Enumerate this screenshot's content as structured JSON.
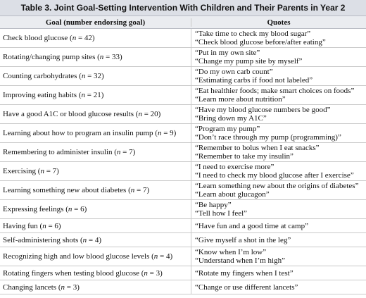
{
  "title": "Table 3. Joint Goal-Setting Intervention With Children and Their Parents in Year 2",
  "headers": {
    "goal": "Goal (number endorsing goal)",
    "quotes": "Quotes"
  },
  "rows": [
    {
      "goal": "Check blood glucose",
      "n": "42",
      "quotes": [
        "“Take time to check my blood sugar”",
        "“Check blood glucose before/after eating”"
      ]
    },
    {
      "goal": "Rotating/changing pump sites",
      "n": "33",
      "quotes": [
        "“Put in my own site”",
        "“Change my pump site by myself”"
      ]
    },
    {
      "goal": "Counting carbohydrates",
      "n": "32",
      "quotes": [
        "“Do my own carb count”",
        "“Estimating carbs if food not labeled”"
      ]
    },
    {
      "goal": "Improving eating habits",
      "n": "21",
      "quotes": [
        "“Eat healthier foods; make smart choices on foods”",
        "“Learn more about nutrition”"
      ]
    },
    {
      "goal": "Have a good A1C or blood glucose results",
      "n": "20",
      "quotes": [
        "“Have my blood glucose numbers be good”",
        "“Bring down my A1C”"
      ]
    },
    {
      "goal": "Learning about how to program an insulin pump",
      "n": "9",
      "quotes": [
        "“Program my pump”",
        "“Don’t race through my pump (programming)”"
      ]
    },
    {
      "goal": "Remembering to administer insulin",
      "n": "7",
      "quotes": [
        "“Remember to bolus when I eat snacks”",
        "“Remember to take my insulin”"
      ]
    },
    {
      "goal": "Exercising",
      "n": "7",
      "quotes": [
        "“I need to exercise more”",
        "“I need to check my blood glucose after I exercise”"
      ]
    },
    {
      "goal": "Learning something new about diabetes",
      "n": "7",
      "quotes": [
        "“Learn something new about the origins of diabetes”",
        "“Learn about glucagon”"
      ]
    },
    {
      "goal": "Expressing feelings",
      "n": "6",
      "quotes": [
        "“Be happy”",
        "“Tell how I feel”"
      ]
    },
    {
      "goal": "Having fun",
      "n": "6",
      "quotes": [
        "“Have fun and a good time at camp”"
      ]
    },
    {
      "goal": "Self-administering shots",
      "n": "4",
      "quotes": [
        "“Give myself a shot in the leg”"
      ]
    },
    {
      "goal": "Recognizing high and low blood glucose levels",
      "n": "4",
      "quotes": [
        "“Know when I’m low”",
        "“Understand when I’m high”"
      ]
    },
    {
      "goal": "Rotating fingers when testing blood glucose",
      "n": "3",
      "quotes": [
        "“Rotate my fingers when I test”"
      ]
    },
    {
      "goal": "Changing lancets",
      "n": "3",
      "quotes": [
        "“Change or use different lancets”"
      ]
    }
  ]
}
